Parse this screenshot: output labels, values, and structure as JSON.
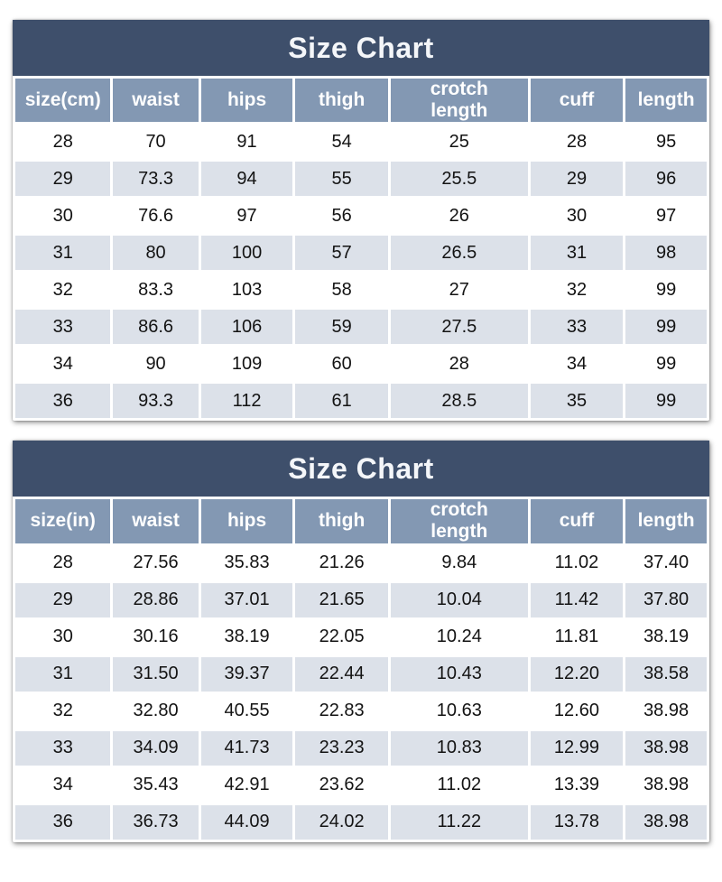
{
  "colors": {
    "title_bg": "#3e4f6b",
    "title_text": "#f4f6f9",
    "header_bg": "#8398b3",
    "header_text": "#ffffff",
    "row_bg": "#ffffff",
    "row_alt_bg": "#dce1e9",
    "cell_text": "#131313"
  },
  "chart_data": [
    {
      "type": "table",
      "title": "Size Chart",
      "columns": [
        "size(cm)",
        "waist",
        "hips",
        "thigh",
        "crotch\nlength",
        "cuff",
        "length"
      ],
      "rows": [
        [
          "28",
          "70",
          "91",
          "54",
          "25",
          "28",
          "95"
        ],
        [
          "29",
          "73.3",
          "94",
          "55",
          "25.5",
          "29",
          "96"
        ],
        [
          "30",
          "76.6",
          "97",
          "56",
          "26",
          "30",
          "97"
        ],
        [
          "31",
          "80",
          "100",
          "57",
          "26.5",
          "31",
          "98"
        ],
        [
          "32",
          "83.3",
          "103",
          "58",
          "27",
          "32",
          "99"
        ],
        [
          "33",
          "86.6",
          "106",
          "59",
          "27.5",
          "33",
          "99"
        ],
        [
          "34",
          "90",
          "109",
          "60",
          "28",
          "34",
          "99"
        ],
        [
          "36",
          "93.3",
          "112",
          "61",
          "28.5",
          "35",
          "99"
        ]
      ]
    },
    {
      "type": "table",
      "title": "Size Chart",
      "columns": [
        "size(in)",
        "waist",
        "hips",
        "thigh",
        "crotch\nlength",
        "cuff",
        "length"
      ],
      "rows": [
        [
          "28",
          "27.56",
          "35.83",
          "21.26",
          "9.84",
          "11.02",
          "37.40"
        ],
        [
          "29",
          "28.86",
          "37.01",
          "21.65",
          "10.04",
          "11.42",
          "37.80"
        ],
        [
          "30",
          "30.16",
          "38.19",
          "22.05",
          "10.24",
          "11.81",
          "38.19"
        ],
        [
          "31",
          "31.50",
          "39.37",
          "22.44",
          "10.43",
          "12.20",
          "38.58"
        ],
        [
          "32",
          "32.80",
          "40.55",
          "22.83",
          "10.63",
          "12.60",
          "38.98"
        ],
        [
          "33",
          "34.09",
          "41.73",
          "23.23",
          "10.83",
          "12.99",
          "38.98"
        ],
        [
          "34",
          "35.43",
          "42.91",
          "23.62",
          "11.02",
          "13.39",
          "38.98"
        ],
        [
          "36",
          "36.73",
          "44.09",
          "24.02",
          "11.22",
          "13.78",
          "38.98"
        ]
      ]
    }
  ]
}
